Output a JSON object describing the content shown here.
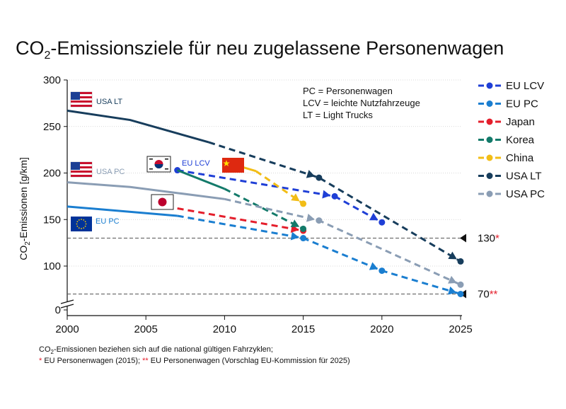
{
  "chart_data": {
    "type": "line",
    "title_main": "CO",
    "title_sub": "2",
    "title_rest": "-Emissionsziele für neu zugelassene Personenwagen",
    "ylabel_main": "CO",
    "ylabel_sub": "2",
    "ylabel_rest": "-Emissionen [g/km]",
    "xlim": [
      2000,
      2025
    ],
    "ylim": [
      0,
      300
    ],
    "x_ticks": [
      "2000",
      "2005",
      "2010",
      "2015",
      "2020",
      "2025"
    ],
    "y_ticks": [
      "0",
      "100",
      "150",
      "200",
      "250",
      "300"
    ],
    "abbreviations": [
      "PC = Personenwagen",
      "LCV = leichte Nutzfahrzeuge",
      "LT = Light Trucks"
    ],
    "reference_lines": [
      {
        "value": 130,
        "label": "130",
        "mark": "*"
      },
      {
        "value": 70,
        "label": "70",
        "mark": "**"
      }
    ],
    "series": [
      {
        "name": "EU LCV",
        "color": "#1f3fd6",
        "solid": [
          [
            2007,
            203
          ]
        ],
        "dashed": [
          [
            2007,
            203
          ],
          [
            2017,
            175
          ],
          [
            2020,
            147
          ]
        ],
        "markers": [
          [
            2007,
            203
          ],
          [
            2017,
            175
          ],
          [
            2020,
            147
          ]
        ]
      },
      {
        "name": "EU PC",
        "color": "#1a7ed0",
        "solid": [
          [
            2000,
            164
          ],
          [
            2007,
            154
          ]
        ],
        "dashed": [
          [
            2007,
            154
          ],
          [
            2015,
            130
          ],
          [
            2020,
            95
          ],
          [
            2025,
            70
          ]
        ],
        "markers": [
          [
            2015,
            130
          ],
          [
            2020,
            95
          ],
          [
            2025,
            70
          ]
        ]
      },
      {
        "name": "Japan",
        "color": "#e41e2b",
        "solid": [],
        "dashed": [
          [
            2007,
            162
          ],
          [
            2015,
            138
          ]
        ],
        "markers": [
          [
            2015,
            138
          ]
        ]
      },
      {
        "name": "Korea",
        "color": "#137a6a",
        "solid": [
          [
            2007,
            203
          ],
          [
            2010,
            183
          ]
        ],
        "dashed": [
          [
            2010,
            183
          ],
          [
            2015,
            140
          ]
        ],
        "markers": [
          [
            2015,
            140
          ]
        ]
      },
      {
        "name": "China",
        "color": "#f2bd16",
        "solid": [
          [
            2010,
            212
          ],
          [
            2012,
            202
          ]
        ],
        "dashed": [
          [
            2012,
            202
          ],
          [
            2015,
            167
          ]
        ],
        "markers": [
          [
            2015,
            167
          ]
        ]
      },
      {
        "name": "USA LT",
        "color": "#173d5c",
        "solid": [
          [
            2000,
            267
          ],
          [
            2004,
            257
          ],
          [
            2009,
            233
          ]
        ],
        "dashed": [
          [
            2009,
            233
          ],
          [
            2016,
            195
          ],
          [
            2025,
            105
          ]
        ],
        "markers": [
          [
            2016,
            195
          ],
          [
            2025,
            105
          ]
        ]
      },
      {
        "name": "USA PC",
        "color": "#8a9db4",
        "solid": [
          [
            2000,
            190
          ],
          [
            2004,
            185
          ],
          [
            2010,
            172
          ]
        ],
        "dashed": [
          [
            2010,
            172
          ],
          [
            2016,
            149
          ],
          [
            2025,
            80
          ]
        ],
        "markers": [
          [
            2016,
            149
          ],
          [
            2025,
            80
          ]
        ]
      }
    ],
    "flag_labels": [
      {
        "text": "USA LT",
        "color": "#173d5c"
      },
      {
        "text": "USA PC",
        "color": "#8a9db4"
      },
      {
        "text": "EU LCV",
        "color": "#1f3fd6"
      },
      {
        "text": "EU PC",
        "color": "#1a7ed0"
      }
    ],
    "legend_placement": "right"
  },
  "footnote": {
    "line1_main": "CO",
    "line1_sub": "2",
    "line1_rest": "-Emissionen beziehen sich auf die national gültigen Fahrzyklen;",
    "line2_star1": "*",
    "line2_text1": " EU Personenwagen (2015); ",
    "line2_star2": "**",
    "line2_text2": " EU Personenwagen (Vorschlag EU-Kommission für 2025)"
  },
  "colors": {
    "accent_star": "#e41e2b",
    "grid": "#bbbbbb",
    "text": "#111111"
  }
}
